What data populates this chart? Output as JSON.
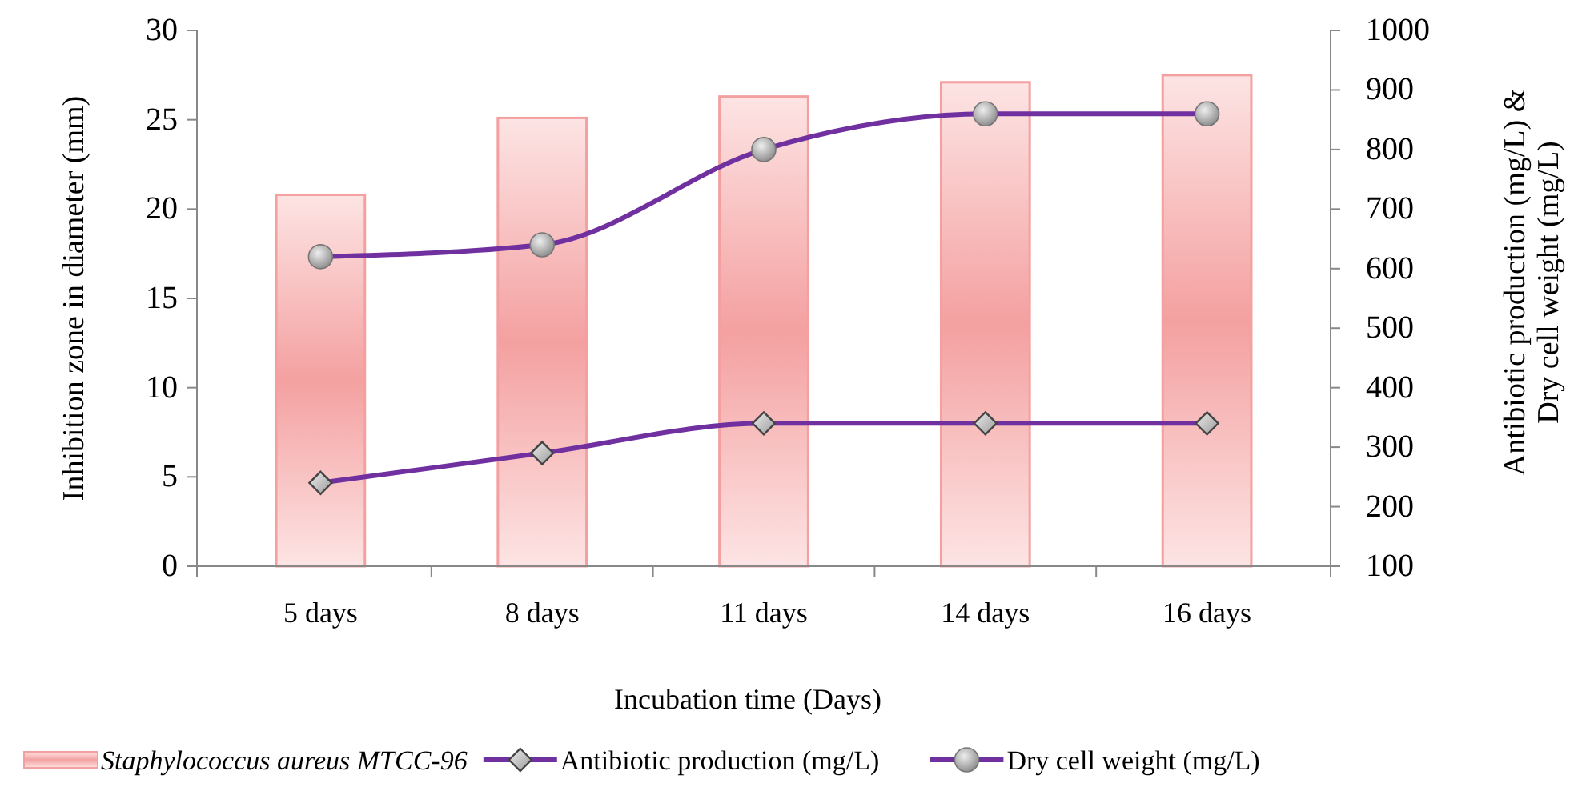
{
  "chart_data": {
    "type": "bar",
    "xlabel": "Incubation time (Days)",
    "ylabel": "Inhibition zone in diameter (mm)",
    "y2label": "Antibiotic  production (mg/L) &\nDry cell weight (mg/L)",
    "categories": [
      "5 days",
      "8 days",
      "11 days",
      "14 days",
      "16 days"
    ],
    "series": [
      {
        "name": "Staphylococcus aureus MTCC-96",
        "color": "#f4a0a0",
        "values": [
          20.8,
          25.1,
          26.3,
          27.1,
          27.5
        ]
      },
      {
        "name": "Antibiotic production (mg/L)",
        "type": "line",
        "axis": "y2",
        "marker": "diamond",
        "color": "#7030a0",
        "values": [
          240,
          290,
          340,
          340,
          340
        ]
      },
      {
        "name": "Dry cell weight (mg/L)",
        "type": "line",
        "axis": "y2",
        "marker": "circle",
        "color": "#7030a0",
        "values": [
          620,
          640,
          800,
          860,
          860
        ]
      }
    ],
    "ylim": [
      0,
      30
    ],
    "yticks": [
      0,
      5,
      10,
      15,
      20,
      25,
      30
    ],
    "y2lim": [
      100,
      1000
    ],
    "y2ticks": [
      100,
      200,
      300,
      400,
      500,
      600,
      700,
      800,
      900,
      1000
    ],
    "grid": false,
    "legend": "bottom"
  }
}
